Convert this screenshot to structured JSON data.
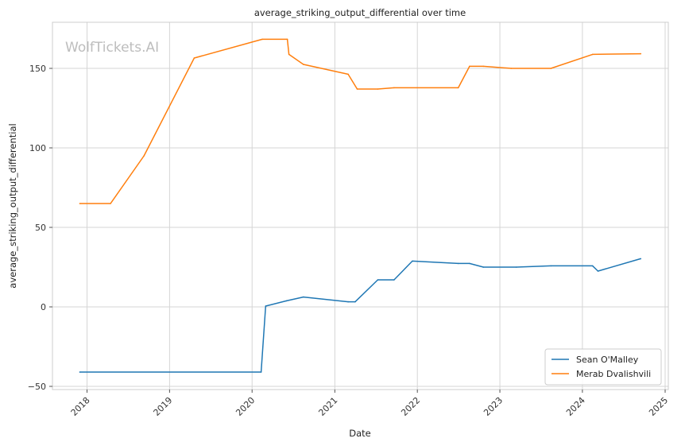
{
  "chart_data": {
    "type": "line",
    "title": "average_striking_output_differential over time",
    "xlabel": "Date",
    "ylabel": "average_striking_output_differential",
    "watermark": "WolfTickets.AI",
    "x_ticks": [
      "2018",
      "2019",
      "2020",
      "2021",
      "2022",
      "2023",
      "2024",
      "2025"
    ],
    "y_ticks": [
      -50,
      0,
      50,
      100,
      150
    ],
    "xlim": [
      "2017-08-01",
      "2025-01-15"
    ],
    "ylim": [
      -52,
      179
    ],
    "grid": true,
    "legend_position": "bottom-right",
    "colors": {
      "Sean O'Malley": "#1f77b4",
      "Merab Dvalishvili": "#ff7f0e"
    },
    "series": [
      {
        "name": "Sean O'Malley",
        "color": "#1f77b4",
        "points": [
          [
            "2017-11-30",
            -41
          ],
          [
            "2020-02-10",
            -41
          ],
          [
            "2020-03-01",
            0.5
          ],
          [
            "2020-06-01",
            3.8
          ],
          [
            "2020-08-15",
            6.2
          ],
          [
            "2021-03-01",
            3.2
          ],
          [
            "2021-04-01",
            3.2
          ],
          [
            "2021-07-10",
            17
          ],
          [
            "2021-09-20",
            17
          ],
          [
            "2021-12-10",
            28.8
          ],
          [
            "2022-07-01",
            27.3
          ],
          [
            "2022-08-20",
            27.3
          ],
          [
            "2022-10-20",
            25
          ],
          [
            "2023-03-15",
            25
          ],
          [
            "2023-08-15",
            25.8
          ],
          [
            "2024-02-15",
            25.8
          ],
          [
            "2024-03-10",
            22.5
          ],
          [
            "2024-09-15",
            30.3
          ]
        ]
      },
      {
        "name": "Merab Dvalishvili",
        "color": "#ff7f0e",
        "points": [
          [
            "2017-11-30",
            65
          ],
          [
            "2018-04-15",
            65
          ],
          [
            "2018-09-10",
            95
          ],
          [
            "2019-04-20",
            156.5
          ],
          [
            "2020-02-15",
            168.3
          ],
          [
            "2020-06-05",
            168.3
          ],
          [
            "2020-06-12",
            158.8
          ],
          [
            "2020-08-15",
            152.5
          ],
          [
            "2021-03-01",
            146.3
          ],
          [
            "2021-04-10",
            137
          ],
          [
            "2021-07-10",
            137
          ],
          [
            "2021-09-20",
            137.8
          ],
          [
            "2022-07-01",
            137.8
          ],
          [
            "2022-08-20",
            151.3
          ],
          [
            "2022-10-20",
            151.3
          ],
          [
            "2023-02-20",
            150
          ],
          [
            "2023-08-15",
            150
          ],
          [
            "2024-02-15",
            158.8
          ],
          [
            "2024-09-15",
            159.2
          ]
        ]
      }
    ]
  }
}
